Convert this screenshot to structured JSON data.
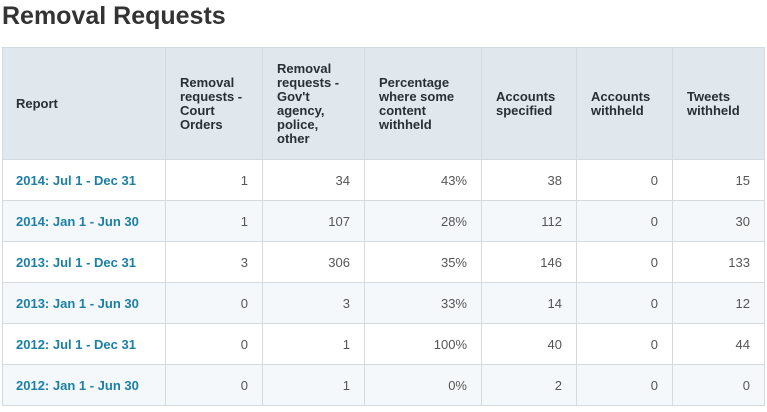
{
  "page": {
    "title": "Removal Requests"
  },
  "table": {
    "headers": [
      "Report",
      "Removal requests - Court Orders",
      "Removal requests - Gov't agency, police, other",
      "Percentage where some content withheld",
      "Accounts specified",
      "Accounts withheld",
      "Tweets withheld"
    ],
    "rows": [
      [
        "2014: Jul 1 - Dec 31",
        "1",
        "34",
        "43%",
        "38",
        "0",
        "15"
      ],
      [
        "2014: Jan 1 - Jun 30",
        "1",
        "107",
        "28%",
        "112",
        "0",
        "30"
      ],
      [
        "2013: Jul 1 - Dec 31",
        "3",
        "306",
        "35%",
        "146",
        "0",
        "133"
      ],
      [
        "2013: Jan 1 - Jun 30",
        "0",
        "3",
        "33%",
        "14",
        "0",
        "12"
      ],
      [
        "2012: Jul 1 - Dec 31",
        "0",
        "1",
        "100%",
        "40",
        "0",
        "44"
      ],
      [
        "2012: Jan 1 - Jun 30",
        "0",
        "1",
        "0%",
        "2",
        "0",
        "0"
      ]
    ]
  },
  "colors": {
    "header_bg": "#e1e8ed",
    "link": "#1b7fa6",
    "row_alt_bg": "#f5f8fa",
    "border": "#d4dbe0"
  }
}
